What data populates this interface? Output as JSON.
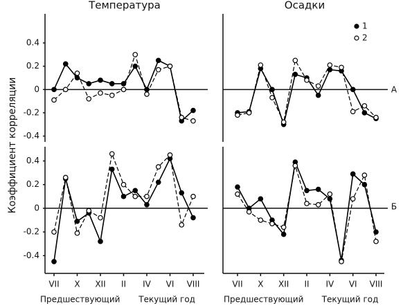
{
  "ylabel": "Коэффициент корреляции",
  "row_labels": [
    "А",
    "Б"
  ],
  "chart_data": [
    {
      "type": "line",
      "title": "Температура",
      "categories": [
        "VII",
        null,
        "X",
        null,
        "XII",
        null,
        "II",
        null,
        "IV",
        null,
        "VI",
        null,
        "VIII"
      ],
      "ylim": [
        -0.45,
        0.65
      ],
      "yticks": [
        -0.4,
        -0.2,
        0,
        0.2,
        0.4
      ],
      "series": [
        {
          "color": "#000000",
          "marker": "filled",
          "style": "solid",
          "values": [
            0,
            0.22,
            0.1,
            0.05,
            0.08,
            0.05,
            0.05,
            0.2,
            0.0,
            0.25,
            0.2,
            -0.27,
            -0.18
          ]
        },
        {
          "color": "#000000",
          "marker": "open",
          "style": "dashed",
          "values": [
            -0.09,
            0.0,
            0.14,
            -0.08,
            -0.03,
            -0.05,
            0.0,
            0.3,
            -0.04,
            0.17,
            0.2,
            -0.24,
            -0.27
          ]
        }
      ]
    },
    {
      "type": "line",
      "title": "Осадки",
      "categories": [
        "VII",
        null,
        "X",
        null,
        "XII",
        null,
        "II",
        null,
        "IV",
        null,
        "VI",
        null,
        "VIII"
      ],
      "ylim": [
        -0.45,
        0.65
      ],
      "legend": "upper right",
      "series": [
        {
          "name": "1",
          "color": "#000000",
          "marker": "filled",
          "style": "solid",
          "values": [
            -0.2,
            -0.19,
            0.18,
            0.0,
            -0.3,
            0.13,
            0.1,
            -0.05,
            0.17,
            0.16,
            0.0,
            -0.2,
            -0.25
          ]
        },
        {
          "name": "2",
          "color": "#000000",
          "marker": "open",
          "style": "dashed",
          "values": [
            -0.22,
            -0.2,
            0.21,
            -0.07,
            -0.28,
            0.25,
            0.08,
            0.03,
            0.21,
            0.19,
            -0.19,
            -0.14,
            -0.24
          ]
        }
      ]
    },
    {
      "type": "line",
      "categories": [
        "VII",
        null,
        "X",
        null,
        "XII",
        null,
        "II",
        null,
        "IV",
        null,
        "VI",
        null,
        "VIII"
      ],
      "period_labels": [
        "Предшествующий",
        "Текущий год"
      ],
      "ylim": [
        -0.55,
        0.52
      ],
      "yticks": [
        -0.4,
        -0.2,
        0,
        0.2,
        0.4
      ],
      "series": [
        {
          "color": "#000000",
          "marker": "filled",
          "style": "solid",
          "values": [
            -0.45,
            0.25,
            -0.11,
            -0.04,
            -0.28,
            0.33,
            0.1,
            0.15,
            0.03,
            0.22,
            0.42,
            0.13,
            -0.08
          ]
        },
        {
          "color": "#000000",
          "marker": "open",
          "style": "dashed",
          "values": [
            -0.2,
            0.26,
            -0.21,
            -0.02,
            -0.08,
            0.46,
            0.2,
            0.1,
            0.1,
            0.35,
            0.45,
            -0.14,
            0.1
          ]
        }
      ]
    },
    {
      "type": "line",
      "categories": [
        "VII",
        null,
        "X",
        null,
        "XII",
        null,
        "II",
        null,
        "IV",
        null,
        "VI",
        null,
        "VIII"
      ],
      "period_labels": [
        "Предшествующий",
        "Текущий год"
      ],
      "ylim": [
        -0.55,
        0.52
      ],
      "series": [
        {
          "color": "#000000",
          "marker": "filled",
          "style": "solid",
          "values": [
            0.18,
            0.0,
            0.08,
            -0.1,
            -0.22,
            0.39,
            0.15,
            0.16,
            0.08,
            -0.44,
            0.29,
            0.2,
            -0.2
          ]
        },
        {
          "color": "#000000",
          "marker": "open",
          "style": "dashed",
          "values": [
            0.12,
            -0.03,
            -0.1,
            -0.13,
            -0.16,
            0.36,
            0.04,
            0.03,
            0.12,
            -0.45,
            0.08,
            0.28,
            -0.28
          ]
        }
      ]
    }
  ]
}
